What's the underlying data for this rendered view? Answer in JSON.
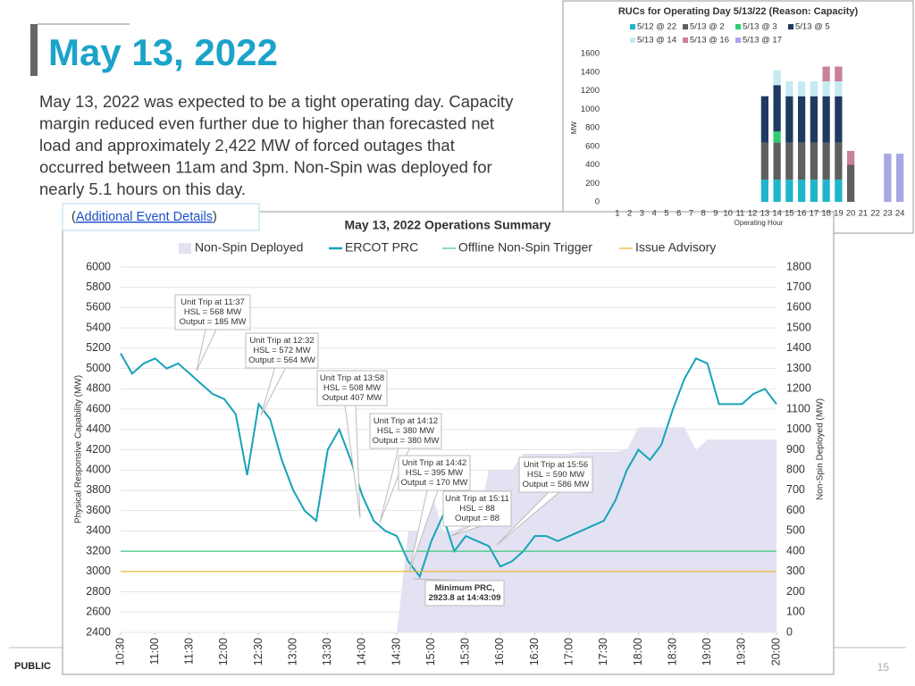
{
  "header": {
    "title": "May 13, 2022"
  },
  "body": {
    "lines": [
      "May 13, 2022 was expected to be a tight operating day. Capacity",
      "margin reduced even further due to higher than forecasted net",
      "load and approximately 2,422 MW of forced outages that",
      "occurred between 11am and 3pm. Non-Spin was deployed for",
      "nearly 5.1 hours on this day."
    ]
  },
  "link": {
    "prefix": "(",
    "text": "Additional Event Details",
    "suffix": ")"
  },
  "footer": {
    "classification": "PUBLIC",
    "page": "15"
  },
  "chart_data": [
    {
      "type": "bar",
      "stacked": true,
      "title": "RUCs for Operating Day 5/13/22 (Reason: Capacity)",
      "y_label": "MW",
      "x_label": "Operating Hour",
      "categories": [
        "1",
        "2",
        "3",
        "4",
        "5",
        "6",
        "7",
        "8",
        "9",
        "10",
        "11",
        "12",
        "13",
        "14",
        "15",
        "16",
        "17",
        "18",
        "19",
        "20",
        "21",
        "22",
        "23",
        "24"
      ],
      "ylim": [
        0,
        1600
      ],
      "yticks": [
        0,
        200,
        400,
        600,
        800,
        1000,
        1200,
        1400,
        1600
      ],
      "series": [
        {
          "name": "5/12 @ 22",
          "color": "#1fb5c9",
          "values": [
            0,
            0,
            0,
            0,
            0,
            0,
            0,
            0,
            0,
            0,
            0,
            0,
            240,
            240,
            240,
            240,
            240,
            240,
            240,
            0,
            0,
            0,
            0,
            0
          ]
        },
        {
          "name": "5/13 @ 2",
          "color": "#5f5f5f",
          "values": [
            0,
            0,
            0,
            0,
            0,
            0,
            0,
            0,
            0,
            0,
            0,
            0,
            400,
            400,
            400,
            400,
            400,
            400,
            400,
            400,
            0,
            0,
            0,
            0
          ]
        },
        {
          "name": "5/13 @ 3",
          "color": "#2ecc71",
          "values": [
            0,
            0,
            0,
            0,
            0,
            0,
            0,
            0,
            0,
            0,
            0,
            0,
            0,
            120,
            0,
            0,
            0,
            0,
            0,
            0,
            0,
            0,
            0,
            0
          ]
        },
        {
          "name": "5/13 @ 5",
          "color": "#1f3a60",
          "values": [
            0,
            0,
            0,
            0,
            0,
            0,
            0,
            0,
            0,
            0,
            0,
            0,
            500,
            500,
            500,
            500,
            500,
            500,
            500,
            0,
            0,
            0,
            0,
            0
          ]
        },
        {
          "name": "5/13 @ 14",
          "color": "#c5eaf2",
          "values": [
            0,
            0,
            0,
            0,
            0,
            0,
            0,
            0,
            0,
            0,
            0,
            0,
            0,
            160,
            160,
            160,
            160,
            160,
            160,
            0,
            0,
            0,
            0,
            0
          ]
        },
        {
          "name": "5/13 @ 16",
          "color": "#c9809a",
          "values": [
            0,
            0,
            0,
            0,
            0,
            0,
            0,
            0,
            0,
            0,
            0,
            0,
            0,
            0,
            0,
            0,
            0,
            160,
            160,
            150,
            0,
            0,
            0,
            0
          ]
        },
        {
          "name": "5/13 @ 17",
          "color": "#a9a6e6",
          "values": [
            0,
            0,
            0,
            0,
            0,
            0,
            0,
            0,
            0,
            0,
            0,
            0,
            0,
            0,
            0,
            0,
            0,
            0,
            0,
            0,
            0,
            0,
            520,
            520
          ]
        }
      ]
    },
    {
      "type": "line",
      "title": "May 13, 2022 Operations Summary",
      "y_label": "Physical Responsive Capability (MW)",
      "y2_label": "Non-Spin Deployed (MW)",
      "x": [
        "10:30",
        "10:40",
        "10:50",
        "11:00",
        "11:10",
        "11:20",
        "11:30",
        "11:40",
        "11:50",
        "12:00",
        "12:10",
        "12:20",
        "12:30",
        "12:40",
        "12:50",
        "13:00",
        "13:10",
        "13:20",
        "13:30",
        "13:40",
        "13:50",
        "14:00",
        "14:10",
        "14:20",
        "14:30",
        "14:40",
        "14:50",
        "15:00",
        "15:10",
        "15:20",
        "15:30",
        "15:40",
        "15:50",
        "16:00",
        "16:10",
        "16:20",
        "16:30",
        "16:40",
        "16:50",
        "17:00",
        "17:10",
        "17:20",
        "17:30",
        "17:40",
        "17:50",
        "18:00",
        "18:10",
        "18:20",
        "18:30",
        "18:40",
        "18:50",
        "19:00",
        "19:10",
        "19:20",
        "19:30",
        "19:40",
        "19:50",
        "20:00"
      ],
      "xticks": [
        "10:30",
        "11:00",
        "11:30",
        "12:00",
        "12:30",
        "13:00",
        "13:30",
        "14:00",
        "14:30",
        "15:00",
        "15:30",
        "16:00",
        "16:30",
        "17:00",
        "17:30",
        "18:00",
        "18:30",
        "19:00",
        "19:30",
        "20:00"
      ],
      "ylim": [
        2400,
        6000
      ],
      "yticks": [
        2400,
        2600,
        2800,
        3000,
        3200,
        3400,
        3600,
        3800,
        4000,
        4200,
        4400,
        4600,
        4800,
        5000,
        5200,
        5400,
        5600,
        5800,
        6000
      ],
      "y2lim": [
        0,
        1800
      ],
      "y2ticks": [
        0,
        100,
        200,
        300,
        400,
        500,
        600,
        700,
        800,
        900,
        1000,
        1100,
        1200,
        1300,
        1400,
        1500,
        1600,
        1700,
        1800
      ],
      "series": [
        {
          "name": "Non-Spin Deployed",
          "color": "#e2e2f3",
          "style": "area",
          "axis": "y2",
          "values": [
            0,
            0,
            0,
            0,
            0,
            0,
            0,
            0,
            0,
            0,
            0,
            0,
            0,
            0,
            0,
            0,
            0,
            0,
            0,
            0,
            0,
            0,
            0,
            0,
            0,
            500,
            500,
            700,
            500,
            500,
            530,
            530,
            800,
            800,
            800,
            880,
            880,
            880,
            880,
            880,
            890,
            890,
            890,
            890,
            900,
            1010,
            1010,
            1010,
            1010,
            1010,
            900,
            950,
            950,
            950,
            950,
            950,
            950,
            950
          ]
        },
        {
          "name": "ERCOT PRC",
          "color": "#17a3b8",
          "style": "line",
          "values": [
            5150,
            4950,
            5050,
            5100,
            5000,
            5050,
            4950,
            4850,
            4750,
            4700,
            4550,
            3950,
            4650,
            4500,
            4100,
            3800,
            3600,
            3500,
            4200,
            4400,
            4100,
            3750,
            3500,
            3400,
            3350,
            3100,
            2950,
            3300,
            3550,
            3200,
            3350,
            3300,
            3250,
            3050,
            3100,
            3200,
            3350,
            3350,
            3300,
            3350,
            3400,
            3450,
            3500,
            3700,
            4000,
            4200,
            4100,
            4250,
            4600,
            4900,
            5100,
            5050,
            4650,
            4650,
            4650,
            4750,
            4800,
            4650
          ]
        },
        {
          "name": "Offline Non-Spin Trigger",
          "color": "#3cc47c",
          "style": "hline",
          "value": 3200
        },
        {
          "name": "Issue Advisory",
          "color": "#f0b429",
          "style": "hline",
          "value": 3000
        }
      ],
      "annotations": [
        {
          "lines": [
            "Unit Trip at 11:37",
            "HSL = 568 MW",
            "Output = 185 MW"
          ]
        },
        {
          "lines": [
            "Unit Trip at 12:32",
            "HSL = 572 MW",
            "Output = 564 MW"
          ]
        },
        {
          "lines": [
            "Unit Trip at 13:58",
            "HSL = 508 MW",
            "Output 407 MW"
          ]
        },
        {
          "lines": [
            "Unit Trip at 14:12",
            "HSL = 380 MW",
            "Output = 380 MW"
          ]
        },
        {
          "lines": [
            "Unit Trip at 14:42",
            "HSL = 395 MW",
            "Output = 170 MW"
          ]
        },
        {
          "lines": [
            "Unit Trip at 15:11",
            "HSL = 88",
            "Output = 88"
          ]
        },
        {
          "lines": [
            "Unit Trip at 15:56",
            "HSL = 590 MW",
            "Output = 586 MW"
          ]
        },
        {
          "lines": [
            "Minimum PRC,",
            "2923.8 at 14:43:09"
          ]
        }
      ]
    }
  ]
}
